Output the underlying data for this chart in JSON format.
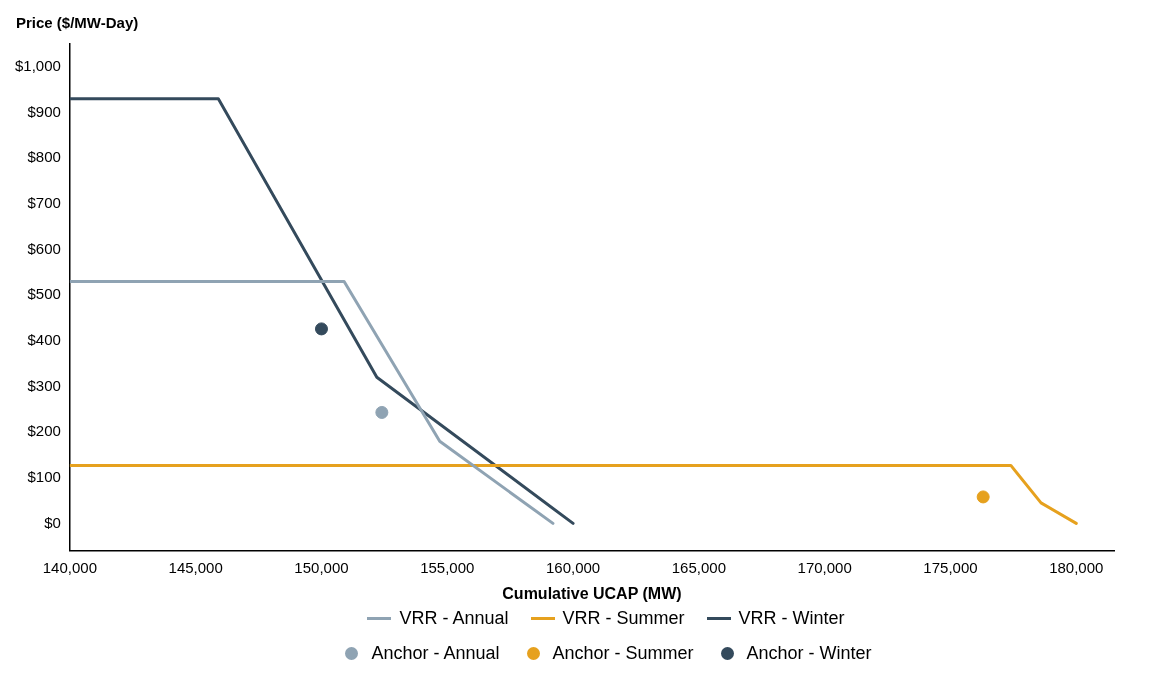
{
  "chart_data": {
    "type": "line",
    "xlabel": "Cumulative UCAP (MW)",
    "ylabel": "Price ($/MW-Day)",
    "xlim": [
      140000,
      181500
    ],
    "ylim": [
      -60,
      1050
    ],
    "xticks": [
      {
        "value": 140000,
        "label": "140,000"
      },
      {
        "value": 145000,
        "label": "145,000"
      },
      {
        "value": 150000,
        "label": "150,000"
      },
      {
        "value": 155000,
        "label": "155,000"
      },
      {
        "value": 160000,
        "label": "160,000"
      },
      {
        "value": 165000,
        "label": "165,000"
      },
      {
        "value": 170000,
        "label": "170,000"
      },
      {
        "value": 175000,
        "label": "175,000"
      },
      {
        "value": 180000,
        "label": "180,000"
      }
    ],
    "yticks": [
      {
        "value": 0,
        "label": "$0"
      },
      {
        "value": 100,
        "label": "$100"
      },
      {
        "value": 200,
        "label": "$200"
      },
      {
        "value": 300,
        "label": "$300"
      },
      {
        "value": 400,
        "label": "$400"
      },
      {
        "value": 500,
        "label": "$500"
      },
      {
        "value": 600,
        "label": "$600"
      },
      {
        "value": 700,
        "label": "$700"
      },
      {
        "value": 800,
        "label": "$800"
      },
      {
        "value": 900,
        "label": "$900"
      },
      {
        "value": 1000,
        "label": "$1,000"
      }
    ],
    "grid": false,
    "legend": "bottom",
    "series": [
      {
        "name": "VRR - Annual",
        "color": "#8fa3b3",
        "x": [
          140000,
          150900,
          154700,
          159200
        ],
        "values": [
          530,
          530,
          180,
          0
        ]
      },
      {
        "name": "VRR - Summer",
        "color": "#e6a11e",
        "x": [
          140000,
          177400,
          178600,
          180000
        ],
        "values": [
          127,
          127,
          45,
          0
        ]
      },
      {
        "name": "VRR - Winter",
        "color": "#344a5c",
        "x": [
          140000,
          145900,
          152200,
          160000
        ],
        "values": [
          930,
          930,
          320,
          0
        ]
      },
      {
        "name": "Anchor - Annual",
        "type": "scatter",
        "color": "#8fa3b3",
        "x": [
          152400
        ],
        "values": [
          243
        ]
      },
      {
        "name": "Anchor - Summer",
        "type": "scatter",
        "color": "#e6a11e",
        "x": [
          176300
        ],
        "values": [
          58
        ]
      },
      {
        "name": "Anchor - Winter",
        "type": "scatter",
        "color": "#344a5c",
        "x": [
          150000
        ],
        "values": [
          426
        ]
      }
    ]
  }
}
